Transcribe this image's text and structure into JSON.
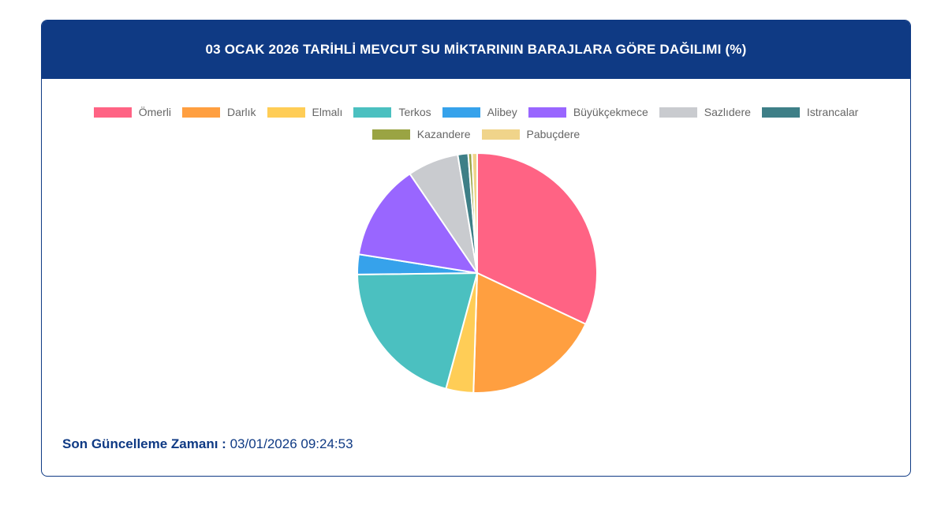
{
  "header": {
    "title": "03 OCAK 2026 TARİHLİ MEVCUT SU MİKTARININ BARAJLARA GÖRE DAĞILIMI (%)"
  },
  "chart_data": {
    "type": "pie",
    "title": "03 OCAK 2026 TARİHLİ MEVCUT SU MİKTARININ BARAJLARA GÖRE DAĞILIMI (%)",
    "legend_position": "top",
    "categories": [
      "Ömerli",
      "Darlık",
      "Elmalı",
      "Terkos",
      "Alibey",
      "Büyükçekmece",
      "Sazlıdere",
      "Istrancalar",
      "Kazandere",
      "Pabuçdere"
    ],
    "values": [
      32.0,
      18.5,
      3.7,
      20.6,
      2.7,
      13.0,
      6.9,
      1.4,
      0.5,
      0.7
    ],
    "colors": [
      "#ff6384",
      "#ff9f40",
      "#ffcd56",
      "#4bc0c0",
      "#36a2eb",
      "#9966ff",
      "#c9cbcf",
      "#3e7f87",
      "#9aa443",
      "#f0d48a"
    ]
  },
  "footer": {
    "label": "Son Güncelleme Zamanı :",
    "value": "03/01/2026 09:24:53"
  }
}
